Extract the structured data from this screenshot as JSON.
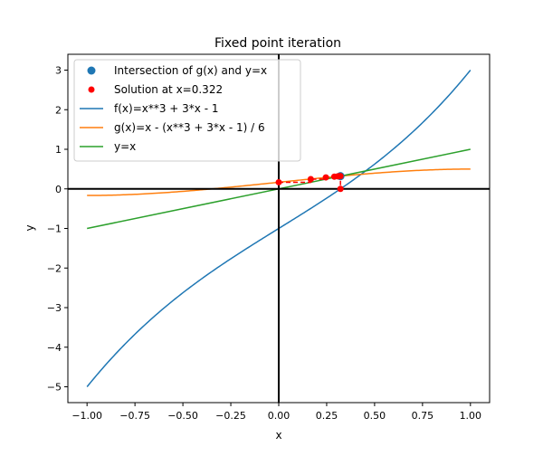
{
  "chart_data": {
    "type": "line",
    "title": "Fixed point iteration",
    "xlabel": "x",
    "ylabel": "y",
    "xlim": [
      -1.1,
      1.1
    ],
    "ylim": [
      -5.4,
      3.4
    ],
    "grid": false,
    "legend_position": "top-left",
    "x_ticks": [
      -1.0,
      -0.75,
      -0.5,
      -0.25,
      0.0,
      0.25,
      0.5,
      0.75,
      1.0
    ],
    "x_tick_labels": [
      "−1.00",
      "−0.75",
      "−0.50",
      "−0.25",
      "0.00",
      "0.25",
      "0.50",
      "0.75",
      "1.00"
    ],
    "y_ticks": [
      -5,
      -4,
      -3,
      -2,
      -1,
      0,
      1,
      2,
      3
    ],
    "y_tick_labels": [
      "−5",
      "−4",
      "−3",
      "−2",
      "−1",
      "0",
      "1",
      "2",
      "3"
    ],
    "series": [
      {
        "name": "Intersection of g(x) and y=x",
        "kind": "scatter",
        "color": "#1f77b4",
        "points": [
          [
            0.322,
            0.322
          ]
        ]
      },
      {
        "name": "Solution at x=0.322",
        "kind": "scatter",
        "color": "#ff0000",
        "points": [
          [
            0.0,
            0.167
          ],
          [
            0.167,
            0.246
          ],
          [
            0.246,
            0.29
          ],
          [
            0.29,
            0.308
          ],
          [
            0.308,
            0.316
          ],
          [
            0.316,
            0.319
          ],
          [
            0.322,
            0.322
          ],
          [
            0.322,
            0.0
          ]
        ]
      },
      {
        "name": "f(x)=x**3 + 3*x - 1",
        "kind": "line",
        "color": "#1f77b4",
        "x_range": [
          -1,
          1
        ],
        "formula": "x^3 + 3x - 1",
        "start": [
          -1,
          -5
        ],
        "end": [
          1,
          3
        ]
      },
      {
        "name": "g(x)=x - (x**3 + 3*x - 1) / 6",
        "kind": "line",
        "color": "#ff7f0e",
        "x_range": [
          -1,
          1
        ],
        "formula": "x - (x^3 + 3x - 1)/6",
        "start": [
          -1,
          -0.167
        ],
        "end": [
          1,
          0.5
        ]
      },
      {
        "name": "y=x",
        "kind": "line",
        "color": "#2ca02c",
        "x_range": [
          -1,
          1
        ],
        "start": [
          -1,
          -1
        ],
        "end": [
          1,
          1
        ]
      }
    ],
    "iteration_path": {
      "color": "#ff0000",
      "style": "dashed",
      "points": [
        [
          0.0,
          0.167
        ],
        [
          0.167,
          0.167
        ],
        [
          0.167,
          0.246
        ],
        [
          0.246,
          0.246
        ],
        [
          0.246,
          0.29
        ],
        [
          0.29,
          0.29
        ],
        [
          0.29,
          0.308
        ],
        [
          0.308,
          0.308
        ],
        [
          0.308,
          0.316
        ],
        [
          0.316,
          0.316
        ],
        [
          0.316,
          0.319
        ],
        [
          0.319,
          0.319
        ],
        [
          0.322,
          0.322
        ],
        [
          0.322,
          0.0
        ]
      ]
    },
    "reference_lines": [
      {
        "orientation": "horizontal",
        "value": 0,
        "color": "#000000"
      },
      {
        "orientation": "vertical",
        "value": 0,
        "color": "#000000"
      }
    ]
  }
}
